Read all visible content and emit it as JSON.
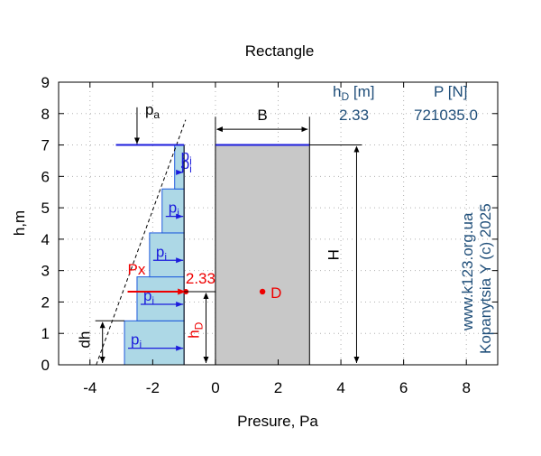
{
  "chart_data": {
    "type": "area",
    "title": "Rectangle",
    "xlabel": "Presure, Pa",
    "ylabel": "h,m",
    "xlim": [
      -5,
      9
    ],
    "ylim": [
      0,
      9
    ],
    "x_ticks": [
      -4,
      -2,
      0,
      2,
      4,
      6,
      8
    ],
    "x_tick_labels": [
      "-4",
      "-2",
      "0",
      "2",
      "4",
      "6",
      "8"
    ],
    "y_ticks": [
      0,
      1,
      2,
      3,
      4,
      5,
      6,
      7,
      8,
      9
    ],
    "y_tick_labels": [
      "0",
      "1",
      "2",
      "3",
      "4",
      "5",
      "6",
      "7",
      "8",
      "9"
    ],
    "grid": true,
    "plate": {
      "x0": 0,
      "x1": 3,
      "y0": 0,
      "y1": 7,
      "color": "#c8c8c8"
    },
    "pressure_steps": [
      {
        "y0": 0,
        "y1": 1.4,
        "p": -2.9
      },
      {
        "y0": 1.4,
        "y1": 2.8,
        "p": -2.5
      },
      {
        "y0": 2.8,
        "y1": 4.2,
        "p": -2.1
      },
      {
        "y0": 4.2,
        "y1": 5.6,
        "p": -1.7
      },
      {
        "y0": 5.6,
        "y1": 7.0,
        "p": -1.3
      }
    ],
    "pressure_trend": [
      {
        "x": -3.8,
        "y": 0
      },
      {
        "x": -0.95,
        "y": 7.8
      }
    ],
    "free_surface": {
      "x0": -3,
      "x1": -1,
      "y": 7
    },
    "top_surface_line": {
      "x0": 0,
      "x1": 3,
      "y": 7
    },
    "center_D": {
      "x": 1.5,
      "y": 2.33
    },
    "resultant_arrow": {
      "x0": -2.8,
      "x1": -1,
      "y": 2.33
    },
    "labels": {
      "pa": "p",
      "pa_sub": "a",
      "pi": "p",
      "pi_sub": "i",
      "px": "Px",
      "hd_value": "2.33",
      "hd": "h",
      "hd_sub": "D",
      "dh": "dh",
      "B": "B",
      "H": "H",
      "D": "D"
    },
    "results": {
      "hd_header": "h",
      "hd_header_sub": "D",
      "hd_header_unit": " [m]",
      "p_header": "P [N]",
      "hd_value": "2.33",
      "p_value": "721035.0"
    },
    "watermark": {
      "line1": "www.k123.org.ua",
      "line2": "Kopanytsia Y (c)  2025"
    },
    "colors": {
      "pressure_fill": "#add8e6",
      "pressure_edge": "#1e5adc",
      "red": "#ee0000",
      "blue": "#1c1cdc",
      "header": "#1f4e79",
      "plate": "#c8c8c8"
    }
  }
}
